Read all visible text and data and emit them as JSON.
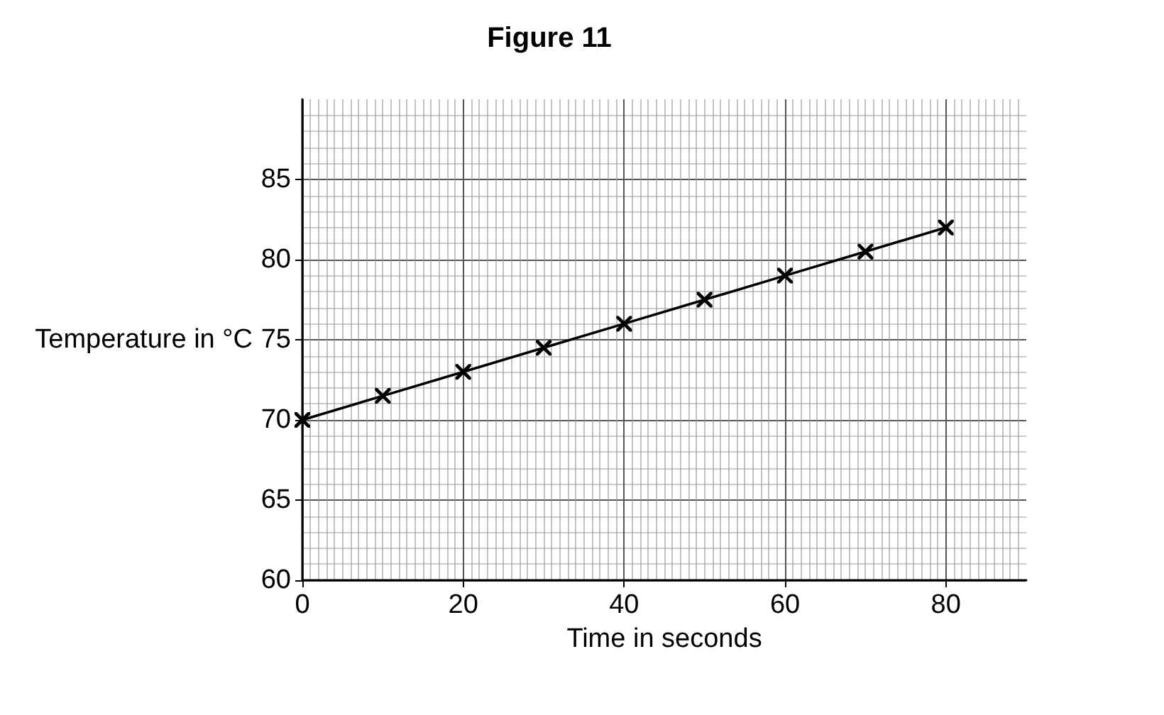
{
  "chart_data": {
    "type": "line",
    "title": "Figure 11",
    "xlabel": "Time in seconds",
    "ylabel": "Temperature in °C",
    "x": [
      0,
      10,
      20,
      30,
      40,
      50,
      60,
      70,
      80
    ],
    "series": [
      {
        "color": "#000000",
        "values": [
          70,
          71.5,
          73,
          74.5,
          76,
          77.5,
          79,
          80.5,
          82
        ]
      }
    ],
    "xlim": [
      0,
      90
    ],
    "xticks": [
      0,
      20,
      40,
      60,
      80
    ],
    "ylim": [
      60,
      90
    ],
    "yticks": [
      60,
      65,
      70,
      75,
      80,
      85
    ],
    "grid": true,
    "marker": "cross",
    "line_style": "solid"
  }
}
